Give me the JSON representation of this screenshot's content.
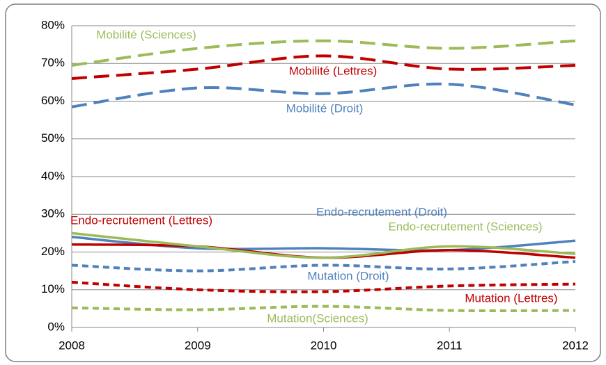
{
  "chart_data": {
    "type": "line",
    "x": [
      2008,
      2009,
      2010,
      2011,
      2012
    ],
    "xlim": [
      2008,
      2012
    ],
    "xticks": [
      2008,
      2009,
      2010,
      2011,
      2012
    ],
    "ylim": [
      0,
      80
    ],
    "yticks": [
      {
        "value": 0,
        "label": "0%"
      },
      {
        "value": 10,
        "label": "10%"
      },
      {
        "value": 20,
        "label": "20%"
      },
      {
        "value": 30,
        "label": "30%"
      },
      {
        "value": 40,
        "label": "40%"
      },
      {
        "value": 50,
        "label": "50%"
      },
      {
        "value": 60,
        "label": "60%"
      },
      {
        "value": 70,
        "label": "70%"
      },
      {
        "value": 80,
        "label": "80%"
      }
    ],
    "grid": true,
    "series": [
      {
        "name": "Mobilité (Sciences)",
        "color": "#9bbb59",
        "dash": "long",
        "values": [
          69.5,
          74,
          76,
          74,
          76
        ]
      },
      {
        "name": "Mobilité (Lettres)",
        "color": "#c00000",
        "dash": "long",
        "values": [
          66,
          68.5,
          72,
          68.5,
          69.5
        ]
      },
      {
        "name": "Mobilité (Droit)",
        "color": "#4f81bd",
        "dash": "long",
        "values": [
          58.5,
          63.5,
          62,
          64.5,
          59
        ]
      },
      {
        "name": "Endo-recrutement (Droit)",
        "color": "#4f81bd",
        "dash": "solid",
        "values": [
          24,
          21,
          21,
          20.5,
          23
        ]
      },
      {
        "name": "Endo-recrutement (Lettres)",
        "color": "#c00000",
        "dash": "solid",
        "values": [
          22,
          21.5,
          18.5,
          20.5,
          18.5
        ]
      },
      {
        "name": "Endo-recrutement (Sciences)",
        "color": "#9bbb59",
        "dash": "solid",
        "values": [
          25,
          21.5,
          18.5,
          21.5,
          19.5
        ]
      },
      {
        "name": "Mutation (Droit)",
        "color": "#4f81bd",
        "dash": "short",
        "values": [
          16.5,
          15,
          16.5,
          15.5,
          17.5
        ]
      },
      {
        "name": "Mutation (Lettres)",
        "color": "#c00000",
        "dash": "short",
        "values": [
          12,
          10,
          9.5,
          11,
          11.5
        ]
      },
      {
        "name": "Mutation(Sciences)",
        "color": "#9bbb59",
        "dash": "short",
        "values": [
          5.2,
          4.7,
          5.6,
          4.5,
          4.5
        ]
      }
    ]
  }
}
